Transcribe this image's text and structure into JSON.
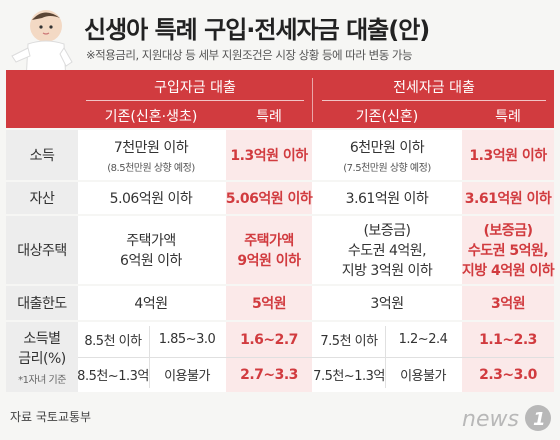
{
  "title": "신생아 특례 구입·전세자금 대출(안)",
  "subtitle": "※적용금리, 지원대상 등 세부 지원조건은 시장 상황 등에 따라 변동 가능",
  "header": {
    "purchase": {
      "title": "구입자금 대출",
      "base": "기존(신혼·생초)",
      "special": "특례"
    },
    "jeonse": {
      "title": "전세자금 대출",
      "base": "기존(신혼)",
      "special": "특례"
    }
  },
  "rows": {
    "income": {
      "label": "소득",
      "p_base": "7천만원 이하",
      "p_base_note": "(8.5천만원 상향 예정)",
      "p_special": "1.3억원 이하",
      "j_base": "6천만원 이하",
      "j_base_note": "(7.5천만원 상향 예정)",
      "j_special": "1.3억원 이하"
    },
    "assets": {
      "label": "자산",
      "p_base": "5.06억원 이하",
      "p_special": "5.06억원 이하",
      "j_base": "3.61억원 이하",
      "j_special": "3.61억원 이하"
    },
    "housing": {
      "label": "대상주택",
      "p_base_1": "주택가액",
      "p_base_2": "6억원 이하",
      "p_special_1": "주택가액",
      "p_special_2": "9억원 이하",
      "j_base_1": "(보증금)",
      "j_base_2": "수도권 4억원,",
      "j_base_3": "지방 3억원 이하",
      "j_special_1": "(보증금)",
      "j_special_2": "수도권 5억원,",
      "j_special_3": "지방 4억원 이하"
    },
    "limit": {
      "label": "대출한도",
      "p_base": "4억원",
      "p_special": "5억원",
      "j_base": "3억원",
      "j_special": "3억원"
    },
    "rate": {
      "label_1": "소득별",
      "label_2": "금리(%)",
      "label_note": "*1자녀 기준",
      "r1": {
        "p_income": "8.5천 이하",
        "p_rate": "1.85~3.0",
        "p_special": "1.6~2.7",
        "j_income": "7.5천 이하",
        "j_rate": "1.2~2.4",
        "j_special": "1.1~2.3"
      },
      "r2": {
        "p_income": "8.5천~1.3억",
        "p_rate": "이용불가",
        "p_special": "2.7~3.3",
        "j_income": "7.5천~1.3억",
        "j_rate": "이용불가",
        "j_special": "2.3~3.0"
      }
    }
  },
  "source": "자료  국토교통부",
  "logo": {
    "text": "news",
    "mark": "1",
    "icon": "news1-logo"
  },
  "colors": {
    "accent": "#d13b3f",
    "special_bg": "#fbe9e9",
    "label_bg": "#ededed"
  }
}
